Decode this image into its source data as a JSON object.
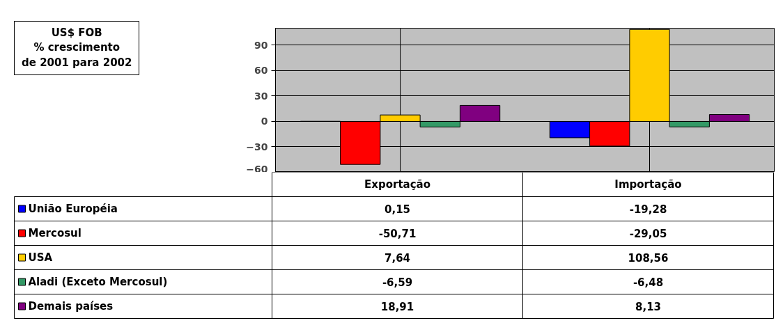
{
  "chart_data": {
    "type": "bar",
    "title": "US$ FOB\n% crescimento\nde 2001 para 2002",
    "categories": [
      "Exportação",
      "Importação"
    ],
    "series": [
      {
        "name": "União Européia",
        "color": "#0000ff",
        "values": [
          0.15,
          -19.28
        ],
        "value_labels": [
          "0,15",
          "-19,28"
        ]
      },
      {
        "name": "Mercosul",
        "color": "#ff0000",
        "values": [
          -50.71,
          -29.05
        ],
        "value_labels": [
          "-50,71",
          "-29,05"
        ]
      },
      {
        "name": "USA",
        "color": "#ffcc00",
        "values": [
          7.64,
          108.56
        ],
        "value_labels": [
          "7,64",
          "108,56"
        ]
      },
      {
        "name": "Aladi (Exceto Mercosul)",
        "color": "#339966",
        "values": [
          -6.59,
          -6.48
        ],
        "value_labels": [
          "-6,59",
          "-6,48"
        ]
      },
      {
        "name": "Demais países",
        "color": "#800080",
        "values": [
          18.91,
          8.13
        ],
        "value_labels": [
          "18,91",
          "8,13"
        ]
      }
    ],
    "legend": "bottom",
    "ylim": [
      -60,
      110
    ],
    "yticks": [
      -60,
      -30,
      0,
      30,
      60,
      90
    ],
    "grid": true
  }
}
